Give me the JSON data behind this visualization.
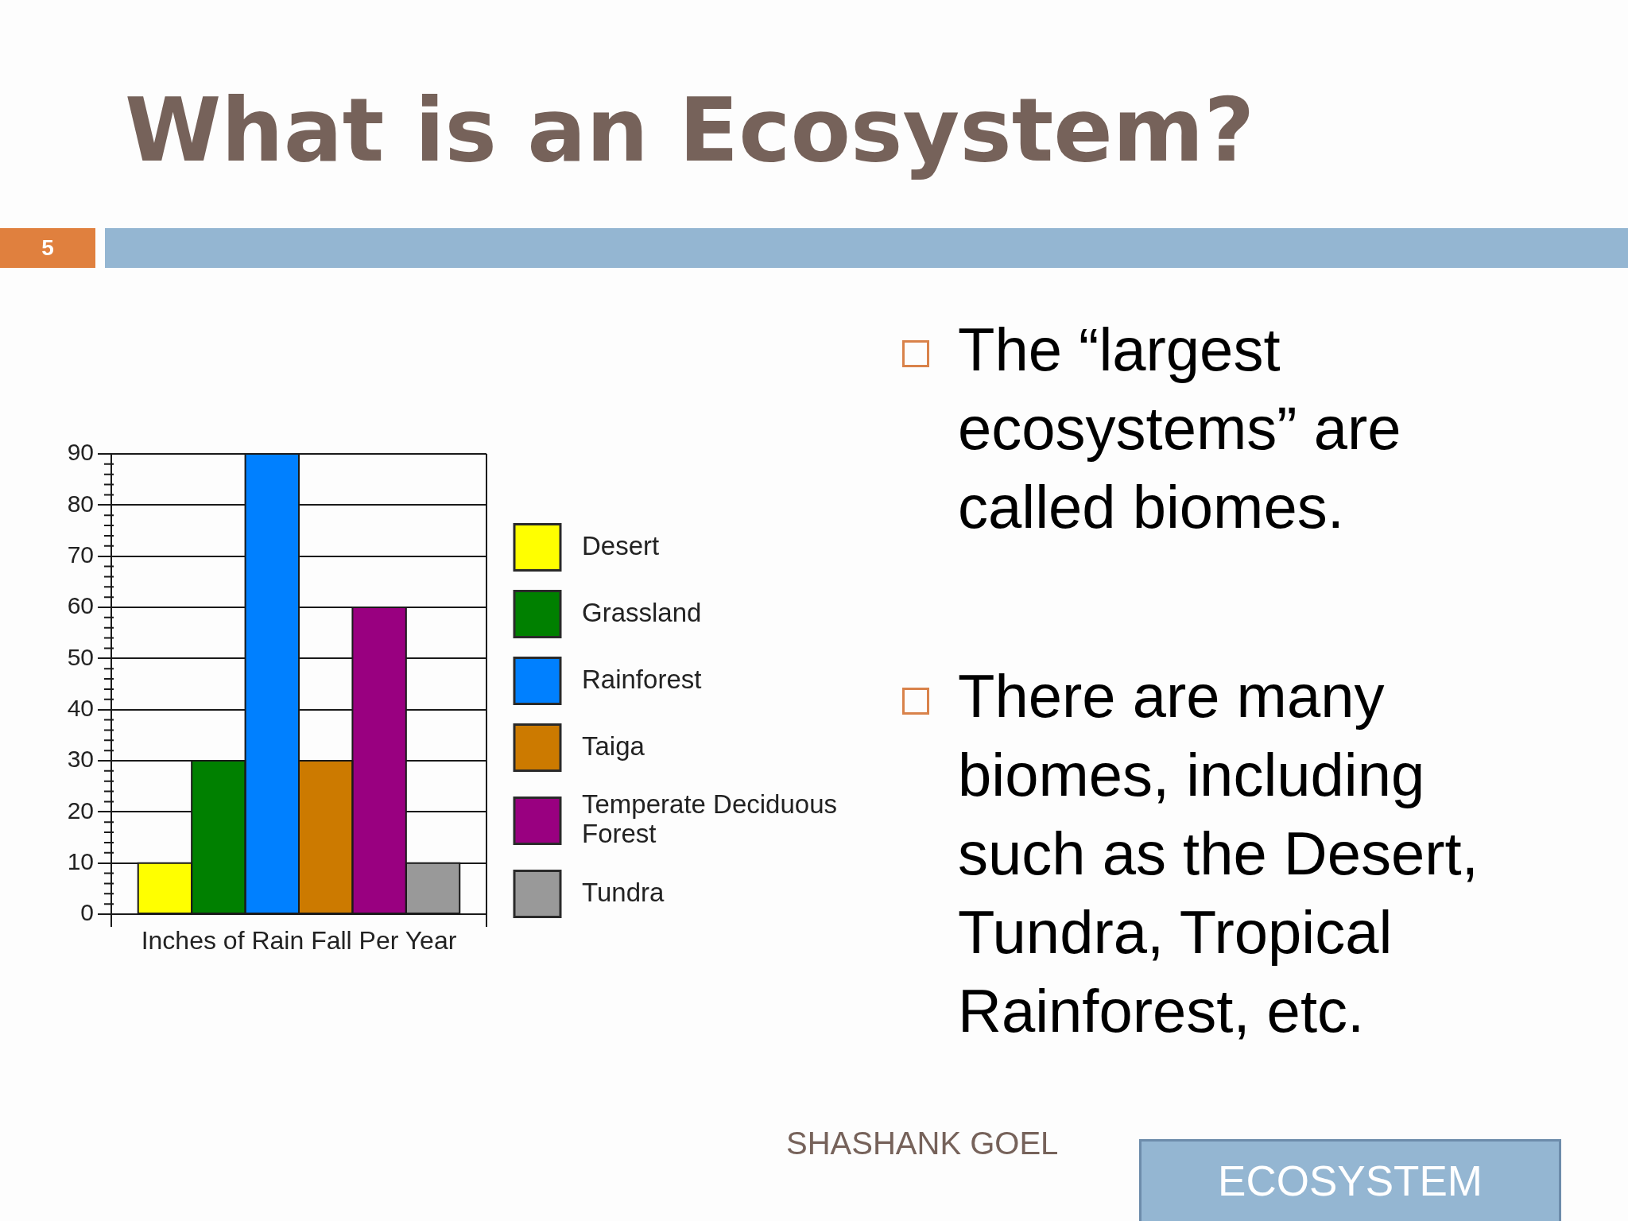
{
  "chart_data": {
    "type": "bar",
    "title": "What is an Ecosystem?",
    "xlabel": "Inches of Rain Fall Per Year",
    "categories": [
      null
    ],
    "series": [
      {
        "name": "Desert",
        "color": "#ffff00",
        "values": [
          10
        ]
      },
      {
        "name": "Grassland",
        "color": "#008000",
        "values": [
          30
        ]
      },
      {
        "name": "Rainforest",
        "color": "#0080ff",
        "values": [
          90
        ]
      },
      {
        "name": "Taiga",
        "color": "#cc7a00",
        "values": [
          30
        ]
      },
      {
        "name": "Temperate Deciduous Forest",
        "color": "#990080",
        "values": [
          60
        ]
      },
      {
        "name": "Tundra",
        "color": "#999999",
        "values": [
          10
        ]
      }
    ],
    "ylim": [
      0,
      90
    ],
    "yticks": [
      0,
      {
        "value": 2,
        "label": null
      },
      {
        "value": 4,
        "label": null
      },
      {
        "value": 6,
        "label": null
      },
      {
        "value": 8,
        "label": null
      },
      10,
      {
        "value": 12,
        "label": null
      },
      {
        "value": 14,
        "label": null
      },
      {
        "value": 16,
        "label": null
      },
      {
        "value": 18,
        "label": null
      },
      20,
      {
        "value": 22,
        "label": null
      },
      {
        "value": 24,
        "label": null
      },
      {
        "value": 26,
        "label": null
      },
      {
        "value": 28,
        "label": null
      },
      30,
      {
        "value": 32,
        "label": null
      },
      {
        "value": 34,
        "label": null
      },
      {
        "value": 36,
        "label": null
      },
      {
        "value": 38,
        "label": null
      },
      40,
      {
        "value": 42,
        "label": null
      },
      {
        "value": 44,
        "label": null
      },
      {
        "value": 46,
        "label": null
      },
      {
        "value": 48,
        "label": null
      },
      50,
      {
        "value": 52,
        "label": null
      },
      {
        "value": 54,
        "label": null
      },
      {
        "value": 56,
        "label": null
      },
      {
        "value": 58,
        "label": null
      },
      60,
      {
        "value": 62,
        "label": null
      },
      {
        "value": 64,
        "label": null
      },
      {
        "value": 66,
        "label": null
      },
      {
        "value": 68,
        "label": null
      },
      70,
      {
        "value": 72,
        "label": null
      },
      {
        "value": 74,
        "label": null
      },
      {
        "value": 76,
        "label": null
      },
      {
        "value": 78,
        "label": null
      },
      80,
      {
        "value": 82,
        "label": null
      },
      {
        "value": 84,
        "label": null
      },
      {
        "value": 86,
        "label": null
      },
      {
        "value": 88,
        "label": null
      },
      90
    ],
    "grid": "y",
    "legend": "right",
    "annotations": [
      "5",
      "The “largest ecosystems” are called biomes.",
      "There are many biomes, including such as the Desert, Tundra, Tropical Rainforest, etc.",
      "SHASHANK GOEL",
      "ECOSYSTEM"
    ]
  }
}
